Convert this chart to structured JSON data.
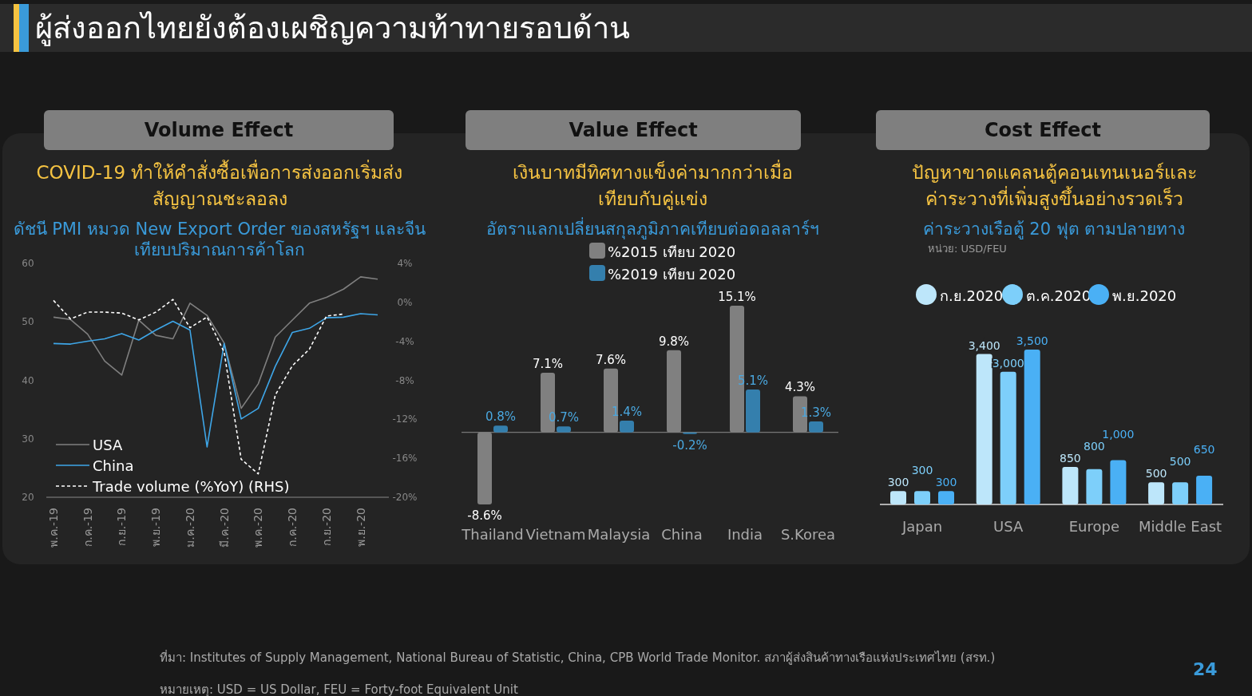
{
  "chart_data": [
    {
      "type": "line",
      "title": "Volume Effect",
      "subtitle": "COVID-19 ทำให้คำสั่งซื้อเพื่อการส่งออกเริ่มส่งสัญญาณชะลอลง",
      "annotations": [
        "ดัชนี PMI หมวด New Export Order ของสหรัฐฯ และจีนเทียบปริมาณการค้าโลก"
      ],
      "categories": [
        "พ.ค.-19",
        null,
        "ก.ค.-19",
        null,
        "ก.ย.-19",
        null,
        "พ.ย.-19",
        null,
        "ม.ค.-20",
        null,
        "มี.ค.-20",
        null,
        "พ.ค.-20",
        null,
        "ก.ค.-20",
        null,
        "ก.ย.-20",
        null,
        "พ.ย.-20",
        null
      ],
      "series": [
        {
          "name": "USA",
          "color": "#7f7f7f",
          "values": [
            50.8,
            50.4,
            47.9,
            43.3,
            40.9,
            50.3,
            47.7,
            47.1,
            53.2,
            51.1,
            46.4,
            35.2,
            39.4,
            47.4,
            50.3,
            53.2,
            54.2,
            55.6,
            57.7,
            57.3
          ]
        },
        {
          "name": "China",
          "color": "#3ea6e8",
          "values": [
            46.3,
            46.2,
            46.7,
            47.1,
            48.0,
            46.9,
            48.6,
            50.1,
            48.6,
            28.6,
            46.3,
            33.4,
            35.2,
            42.4,
            48.2,
            48.9,
            50.7,
            50.8,
            51.4,
            51.2
          ]
        },
        {
          "name": "Trade volume (%YoY) (RHS)",
          "color": "#ffffff",
          "axis": "y2",
          "line_style": "dashed",
          "values": [
            0.2,
            -1.7,
            -1.0,
            -1.0,
            -1.1,
            -1.8,
            -1.0,
            0.3,
            -2.6,
            -1.5,
            -5.1,
            -16.1,
            -17.6,
            -9.5,
            -6.5,
            -4.8,
            -1.4,
            -1.2,
            null,
            null
          ]
        }
      ],
      "ylim": [
        20,
        60
      ],
      "yticks": [
        20,
        30,
        40,
        50,
        60
      ],
      "y2lim": [
        -20,
        4
      ],
      "y2ticks": [
        {
          "value": -20,
          "label": "-20%"
        },
        {
          "value": -16,
          "label": "-16%"
        },
        {
          "value": -12,
          "label": "-12%"
        },
        {
          "value": -8,
          "label": "-8%"
        },
        {
          "value": -4,
          "label": "-4%"
        },
        {
          "value": 0,
          "label": "0%"
        },
        {
          "value": 4,
          "label": "4%"
        }
      ],
      "legend": "bottom left"
    },
    {
      "type": "bar",
      "title": "Value Effect",
      "subtitle": "เงินบาทมีทิศทางแข็งค่ามากกว่าเมื่อเทียบกับคู่แข่ง",
      "annotations": [
        "อัตราแลกเปลี่ยนสกุลภูมิภาคเทียบต่อดอลลาร์ฯ"
      ],
      "categories": [
        "Thailand",
        "Vietnam",
        "Malaysia",
        "China",
        "India",
        "S.Korea"
      ],
      "series": [
        {
          "name": "%2015 เทียบ 2020",
          "color": "#808080",
          "values": [
            -8.6,
            7.1,
            7.6,
            9.8,
            15.1,
            4.3
          ],
          "value_labels": [
            "-8.6%",
            "7.1%",
            "7.6%",
            "9.8%",
            "15.1%",
            "4.3%"
          ]
        },
        {
          "name": "%2019 เทียบ 2020",
          "color": "#347fad",
          "values": [
            0.8,
            0.7,
            1.4,
            -0.2,
            5.1,
            1.3
          ],
          "value_labels": [
            "0.8%",
            "0.7%",
            "1.4%",
            "-0.2%",
            "5.1%",
            "1.3%"
          ]
        }
      ],
      "legend": "top"
    },
    {
      "type": "bar",
      "title": "Cost Effect",
      "subtitle": "ปัญหาขาดแคลนตู้คอนเทนเนอร์และค่าระวางที่เพิ่มสูงขึ้นอย่างรวดเร็ว",
      "annotations": [
        "ค่าระวางเรือตู้ 20 ฟุต ตามปลายทาง",
        "หน่วย: USD/FEU"
      ],
      "categories": [
        "Japan",
        "USA",
        "Europe",
        "Middle East"
      ],
      "series": [
        {
          "name": "ก.ย.2020",
          "color": "#bde6fa",
          "values": [
            300,
            3400,
            850,
            500
          ],
          "value_labels": [
            "300",
            "3,400",
            "850",
            "500"
          ]
        },
        {
          "name": "ต.ค.2020",
          "color": "#7dcffa",
          "values": [
            300,
            3000,
            800,
            500
          ],
          "value_labels": [
            "300",
            "3,000",
            "800",
            "500"
          ]
        },
        {
          "name": "พ.ย.2020",
          "color": "#4ab0f5",
          "values": [
            300,
            3500,
            1000,
            650
          ],
          "value_labels": [
            "300",
            "3,500",
            "1,000",
            "650"
          ]
        }
      ],
      "legend": "top"
    },
    {
      "type": "other",
      "title": "ผู้ส่งออกไทยยังต้องเผชิญความท้าทายรอบด้าน",
      "annotations": [
        "ที่มา: Institutes of Supply Management, National Bureau of Statistic, China, CPB World Trade Monitor. สภาผู้ส่งสินค้าทางเรือแห่งประเทศไทย (สรท.)",
        "หมายเหตุ: USD = US Dollar, FEU =  Forty-foot Equivalent Unit",
        "24"
      ]
    }
  ]
}
